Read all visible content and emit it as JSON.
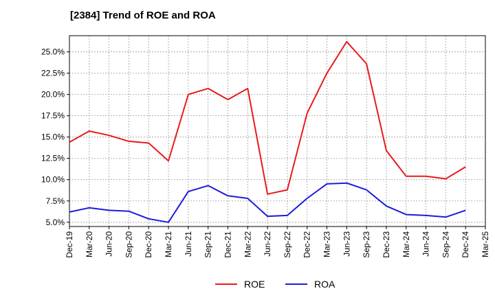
{
  "chart_data": {
    "type": "line",
    "title": "[2384]  Trend of ROE and ROA",
    "xlabel": "",
    "ylabel": "",
    "x": [
      "Dec-19",
      "Mar-20",
      "Jun-20",
      "Sep-20",
      "Dec-20",
      "Mar-21",
      "Jun-21",
      "Sep-21",
      "Dec-21",
      "Mar-22",
      "Jun-22",
      "Sep-22",
      "Dec-22",
      "Mar-23",
      "Jun-23",
      "Sep-23",
      "Dec-23",
      "Mar-24",
      "Jun-24",
      "Sep-24",
      "Dec-24",
      "Mar-25"
    ],
    "yticks": [
      "5.0%",
      "7.5%",
      "10.0%",
      "12.5%",
      "15.0%",
      "17.5%",
      "20.0%",
      "22.5%",
      "25.0%"
    ],
    "ylim": [
      4.5,
      26.9
    ],
    "grid": true,
    "legend_position": "bottom",
    "series": [
      {
        "name": "ROE",
        "color": "#e8191a",
        "values": [
          14.4,
          15.7,
          15.2,
          14.5,
          14.3,
          12.2,
          20.0,
          20.7,
          19.4,
          20.7,
          8.3,
          8.8,
          17.8,
          22.5,
          26.2,
          23.6,
          13.4,
          10.4,
          10.4,
          10.1,
          11.5,
          null
        ]
      },
      {
        "name": "ROA",
        "color": "#1a1adb",
        "values": [
          6.2,
          6.7,
          6.4,
          6.3,
          5.4,
          5.0,
          8.6,
          9.3,
          8.1,
          7.8,
          5.7,
          5.8,
          7.8,
          9.5,
          9.6,
          8.8,
          6.9,
          5.9,
          5.8,
          5.6,
          6.4,
          null
        ]
      }
    ]
  }
}
